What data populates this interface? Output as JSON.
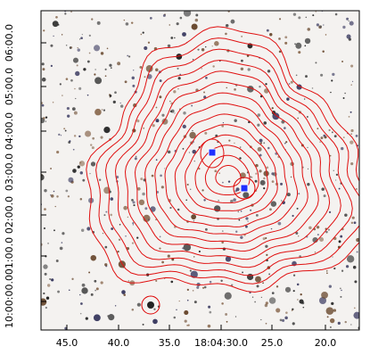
{
  "axes": {
    "x_ticks": [
      "45.0",
      "40.0",
      "35.0",
      "18:04:30.0",
      "25.0",
      "20.0"
    ],
    "y_ticks": [
      "06:00.0",
      "05:00.0",
      "04:00.0",
      "03:00.0",
      "02:00.0",
      "01:00.0",
      "10:00:00.0"
    ]
  }
}
